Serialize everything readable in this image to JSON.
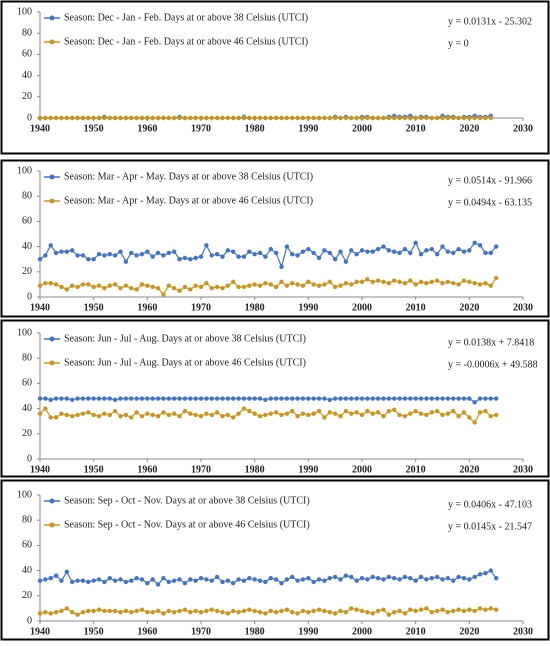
{
  "chart_data": [
    {
      "type": "line",
      "xlim": [
        1940,
        2030
      ],
      "xticks": [
        1940,
        1950,
        1960,
        1970,
        1980,
        1990,
        2000,
        2010,
        2020,
        2030
      ],
      "ylim": [
        0,
        100
      ],
      "yticks": [
        0,
        20,
        40,
        60,
        80,
        100
      ],
      "annotations": [
        "y = 0.0131x - 25.302",
        "y = 0"
      ],
      "x": [
        1940,
        1941,
        1942,
        1943,
        1944,
        1945,
        1946,
        1947,
        1948,
        1949,
        1950,
        1951,
        1952,
        1953,
        1954,
        1955,
        1956,
        1957,
        1958,
        1959,
        1960,
        1961,
        1962,
        1963,
        1964,
        1965,
        1966,
        1967,
        1968,
        1969,
        1970,
        1971,
        1972,
        1973,
        1974,
        1975,
        1976,
        1977,
        1978,
        1979,
        1980,
        1981,
        1982,
        1983,
        1984,
        1985,
        1986,
        1987,
        1988,
        1989,
        1990,
        1991,
        1992,
        1993,
        1994,
        1995,
        1996,
        1997,
        1998,
        1999,
        2000,
        2001,
        2002,
        2003,
        2004,
        2005,
        2006,
        2007,
        2008,
        2009,
        2010,
        2011,
        2012,
        2013,
        2014,
        2015,
        2016,
        2017,
        2018,
        2019,
        2020,
        2021,
        2022,
        2023,
        2024
      ],
      "series": [
        {
          "name": "Season: Dec - Jan - Feb. Days at or above 38 Celsius (UTCI)",
          "color": "#4472c4",
          "values": [
            0,
            0,
            0,
            0,
            0,
            0,
            0,
            0,
            0,
            0,
            0,
            0,
            1,
            0,
            0,
            0,
            0,
            0,
            0,
            0,
            0,
            0,
            0,
            0,
            0,
            0,
            1,
            0,
            0,
            0,
            0,
            0,
            0,
            0,
            0,
            0,
            0,
            0,
            1,
            0,
            0,
            0,
            0,
            0,
            0,
            0,
            0,
            0,
            0,
            0,
            0,
            0,
            0,
            0,
            0,
            1,
            0,
            1,
            0,
            0,
            1,
            1,
            0,
            0,
            0,
            1,
            2,
            1,
            1,
            2,
            0,
            1,
            1,
            0,
            0,
            2,
            1,
            1,
            0,
            1,
            1,
            2,
            1,
            1,
            2
          ]
        },
        {
          "name": "Season: Dec - Jan - Feb. Days at or above 46 Celsius (UTCI)",
          "color": "#c8961e",
          "values": [
            0,
            0,
            0,
            0,
            0,
            0,
            0,
            0,
            0,
            0,
            0,
            0,
            0,
            0,
            0,
            0,
            0,
            0,
            0,
            0,
            0,
            0,
            0,
            0,
            0,
            0,
            0,
            0,
            0,
            0,
            0,
            0,
            0,
            0,
            0,
            0,
            0,
            0,
            0,
            0,
            0,
            0,
            0,
            0,
            0,
            0,
            0,
            0,
            0,
            0,
            0,
            0,
            0,
            0,
            0,
            0,
            0,
            0,
            0,
            0,
            0,
            0,
            0,
            0,
            0,
            0,
            0,
            0,
            0,
            0,
            0,
            0,
            0,
            0,
            0,
            0,
            0,
            0,
            0,
            0,
            0,
            0,
            0,
            0,
            0
          ]
        }
      ]
    },
    {
      "type": "line",
      "xlim": [
        1940,
        2030
      ],
      "xticks": [
        1940,
        1950,
        1960,
        1970,
        1980,
        1990,
        2000,
        2010,
        2020,
        2030
      ],
      "ylim": [
        0,
        100
      ],
      "yticks": [
        0,
        20,
        40,
        60,
        80,
        100
      ],
      "annotations": [
        "y = 0.0514x - 91.966",
        "y = 0.0494x - 63.135"
      ],
      "x": [
        1940,
        1941,
        1942,
        1943,
        1944,
        1945,
        1946,
        1947,
        1948,
        1949,
        1950,
        1951,
        1952,
        1953,
        1954,
        1955,
        1956,
        1957,
        1958,
        1959,
        1960,
        1961,
        1962,
        1963,
        1964,
        1965,
        1966,
        1967,
        1968,
        1969,
        1970,
        1971,
        1972,
        1973,
        1974,
        1975,
        1976,
        1977,
        1978,
        1979,
        1980,
        1981,
        1982,
        1983,
        1984,
        1985,
        1986,
        1987,
        1988,
        1989,
        1990,
        1991,
        1992,
        1993,
        1994,
        1995,
        1996,
        1997,
        1998,
        1999,
        2000,
        2001,
        2002,
        2003,
        2004,
        2005,
        2006,
        2007,
        2008,
        2009,
        2010,
        2011,
        2012,
        2013,
        2014,
        2015,
        2016,
        2017,
        2018,
        2019,
        2020,
        2021,
        2022,
        2023,
        2024,
        2025
      ],
      "series": [
        {
          "name": "Season: Mar - Apr - May. Days at or above 38 Celsius (UTCI)",
          "color": "#4472c4",
          "values": [
            30,
            33,
            41,
            35,
            36,
            36,
            37,
            33,
            33,
            30,
            30,
            34,
            33,
            34,
            33,
            36,
            28,
            35,
            33,
            34,
            36,
            32,
            35,
            33,
            35,
            36,
            30,
            31,
            30,
            31,
            32,
            41,
            33,
            34,
            32,
            37,
            36,
            32,
            32,
            36,
            34,
            35,
            32,
            38,
            35,
            24,
            40,
            34,
            33,
            36,
            38,
            35,
            31,
            37,
            35,
            30,
            36,
            28,
            37,
            34,
            37,
            36,
            36,
            38,
            40,
            37,
            36,
            35,
            38,
            35,
            43,
            34,
            37,
            38,
            34,
            40,
            36,
            35,
            38,
            36,
            37,
            43,
            41,
            35,
            35,
            40
          ]
        },
        {
          "name": "Season: Mar - Apr - May. Days at or above 46 Celsius (UTCI)",
          "color": "#c8961e",
          "values": [
            9,
            11,
            11,
            10,
            8,
            6,
            9,
            8,
            10,
            10,
            8,
            9,
            7,
            9,
            10,
            7,
            9,
            7,
            6,
            10,
            9,
            8,
            7,
            2,
            9,
            7,
            5,
            8,
            6,
            9,
            8,
            11,
            7,
            8,
            7,
            9,
            12,
            8,
            8,
            9,
            10,
            9,
            11,
            10,
            8,
            12,
            9,
            11,
            10,
            9,
            12,
            10,
            9,
            10,
            12,
            8,
            9,
            11,
            10,
            12,
            12,
            14,
            12,
            13,
            12,
            11,
            13,
            12,
            11,
            13,
            10,
            12,
            11,
            12,
            13,
            11,
            12,
            11,
            10,
            13,
            12,
            11,
            10,
            11,
            9,
            15
          ]
        }
      ]
    },
    {
      "type": "line",
      "xlim": [
        1940,
        2030
      ],
      "xticks": [
        1940,
        1950,
        1960,
        1970,
        1980,
        1990,
        2000,
        2010,
        2020,
        2030
      ],
      "ylim": [
        0,
        100
      ],
      "yticks": [
        0,
        20,
        40,
        60,
        80,
        100
      ],
      "annotations": [
        "y = 0.0138x + 7.8418",
        "y = -0.0006x + 49.588"
      ],
      "x": [
        1940,
        1941,
        1942,
        1943,
        1944,
        1945,
        1946,
        1947,
        1948,
        1949,
        1950,
        1951,
        1952,
        1953,
        1954,
        1955,
        1956,
        1957,
        1958,
        1959,
        1960,
        1961,
        1962,
        1963,
        1964,
        1965,
        1966,
        1967,
        1968,
        1969,
        1970,
        1971,
        1972,
        1973,
        1974,
        1975,
        1976,
        1977,
        1978,
        1979,
        1980,
        1981,
        1982,
        1983,
        1984,
        1985,
        1986,
        1987,
        1988,
        1989,
        1990,
        1991,
        1992,
        1993,
        1994,
        1995,
        1996,
        1997,
        1998,
        1999,
        2000,
        2001,
        2002,
        2003,
        2004,
        2005,
        2006,
        2007,
        2008,
        2009,
        2010,
        2011,
        2012,
        2013,
        2014,
        2015,
        2016,
        2017,
        2018,
        2019,
        2020,
        2021,
        2022,
        2023,
        2024,
        2025
      ],
      "series": [
        {
          "name": "Season: Jun - Jul - Aug. Days at or above 38 Celsius (UTCI)",
          "color": "#4472c4",
          "values": [
            48,
            48,
            47,
            48,
            48,
            48,
            47,
            48,
            48,
            48,
            48,
            48,
            48,
            48,
            47,
            48,
            48,
            48,
            48,
            48,
            48,
            48,
            48,
            48,
            48,
            48,
            48,
            48,
            48,
            48,
            48,
            48,
            48,
            48,
            48,
            48,
            48,
            48,
            48,
            48,
            48,
            48,
            47,
            48,
            48,
            48,
            48,
            48,
            48,
            48,
            48,
            48,
            48,
            48,
            47,
            48,
            48,
            48,
            48,
            48,
            48,
            48,
            48,
            48,
            48,
            48,
            48,
            48,
            48,
            48,
            48,
            48,
            48,
            48,
            48,
            48,
            48,
            48,
            48,
            48,
            48,
            45,
            48,
            48,
            48,
            48
          ]
        },
        {
          "name": "Season: Jun - Jul - Aug. Days at or above 46 Celsius (UTCI)",
          "color": "#c8961e",
          "values": [
            36,
            40,
            33,
            33,
            36,
            35,
            34,
            35,
            36,
            37,
            35,
            34,
            36,
            35,
            38,
            34,
            35,
            33,
            37,
            34,
            36,
            35,
            34,
            37,
            35,
            36,
            34,
            38,
            36,
            35,
            34,
            36,
            35,
            37,
            34,
            35,
            33,
            36,
            40,
            38,
            36,
            34,
            35,
            36,
            37,
            35,
            36,
            38,
            34,
            36,
            35,
            36,
            38,
            33,
            37,
            36,
            34,
            38,
            36,
            37,
            35,
            38,
            36,
            37,
            34,
            38,
            39,
            35,
            34,
            36,
            38,
            36,
            35,
            37,
            38,
            35,
            36,
            38,
            34,
            37,
            33,
            29,
            37,
            38,
            34,
            35
          ]
        }
      ]
    },
    {
      "type": "line",
      "xlim": [
        1940,
        2030
      ],
      "xticks": [
        1940,
        1950,
        1960,
        1970,
        1980,
        1990,
        2000,
        2010,
        2020,
        2030
      ],
      "ylim": [
        0,
        100
      ],
      "yticks": [
        0,
        20,
        40,
        60,
        80,
        100
      ],
      "annotations": [
        "y = 0.0406x - 47.103",
        "y = 0.0145x - 21.547"
      ],
      "x": [
        1940,
        1941,
        1942,
        1943,
        1944,
        1945,
        1946,
        1947,
        1948,
        1949,
        1950,
        1951,
        1952,
        1953,
        1954,
        1955,
        1956,
        1957,
        1958,
        1959,
        1960,
        1961,
        1962,
        1963,
        1964,
        1965,
        1966,
        1967,
        1968,
        1969,
        1970,
        1971,
        1972,
        1973,
        1974,
        1975,
        1976,
        1977,
        1978,
        1979,
        1980,
        1981,
        1982,
        1983,
        1984,
        1985,
        1986,
        1987,
        1988,
        1989,
        1990,
        1991,
        1992,
        1993,
        1994,
        1995,
        1996,
        1997,
        1998,
        1999,
        2000,
        2001,
        2002,
        2003,
        2004,
        2005,
        2006,
        2007,
        2008,
        2009,
        2010,
        2011,
        2012,
        2013,
        2014,
        2015,
        2016,
        2017,
        2018,
        2019,
        2020,
        2021,
        2022,
        2023,
        2024,
        2025
      ],
      "series": [
        {
          "name": "Season: Sep - Oct - Nov. Days at or above 38 Celsius (UTCI)",
          "color": "#4472c4",
          "values": [
            32,
            33,
            34,
            36,
            32,
            39,
            31,
            32,
            32,
            31,
            32,
            33,
            31,
            34,
            32,
            33,
            31,
            32,
            34,
            33,
            30,
            33,
            29,
            34,
            31,
            32,
            33,
            30,
            33,
            32,
            34,
            33,
            32,
            35,
            31,
            32,
            30,
            33,
            32,
            34,
            33,
            32,
            31,
            34,
            33,
            30,
            33,
            35,
            32,
            33,
            34,
            31,
            33,
            32,
            34,
            35,
            33,
            36,
            35,
            32,
            34,
            33,
            35,
            34,
            33,
            35,
            34,
            33,
            35,
            34,
            32,
            35,
            33,
            34,
            35,
            33,
            34,
            32,
            35,
            34,
            33,
            35,
            37,
            38,
            40,
            34
          ]
        },
        {
          "name": "Season: Sep - Oct - Nov. Days at or above 46 Celsius (UTCI)",
          "color": "#c8961e",
          "values": [
            6,
            7,
            6,
            7,
            8,
            10,
            7,
            5,
            7,
            8,
            8,
            9,
            8,
            8,
            8,
            7,
            8,
            7,
            8,
            9,
            7,
            7,
            8,
            6,
            8,
            7,
            8,
            9,
            7,
            8,
            7,
            8,
            9,
            8,
            7,
            6,
            8,
            7,
            8,
            9,
            8,
            7,
            6,
            8,
            7,
            8,
            9,
            7,
            6,
            8,
            7,
            8,
            9,
            8,
            7,
            6,
            8,
            7,
            10,
            9,
            8,
            7,
            6,
            8,
            9,
            5,
            7,
            8,
            6,
            9,
            8,
            9,
            10,
            7,
            8,
            9,
            7,
            8,
            9,
            8,
            9,
            8,
            10,
            9,
            10,
            9
          ]
        }
      ]
    }
  ]
}
